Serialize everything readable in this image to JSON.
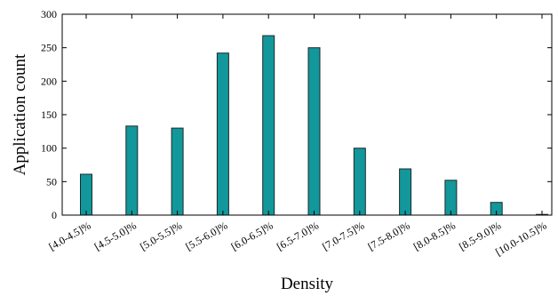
{
  "chart_data": {
    "type": "bar",
    "title": "",
    "xlabel": "Density",
    "ylabel": "Application count",
    "categories": [
      "[4.0-4.5]%",
      "[4.5-5.0]%",
      "[5.0-5.5]%",
      "[5.5-6.0]%",
      "[6.0-6.5]%",
      "[6.5-7.0]%",
      "[7.0-7.5]%",
      "[7.5-8.0]%",
      "[8.0-8.5]%",
      "[8.5-9.0]%",
      "[10.0-10.5]%"
    ],
    "values": [
      61,
      133,
      130,
      242,
      268,
      250,
      100,
      69,
      52,
      19,
      1
    ],
    "ylim": [
      0,
      300
    ],
    "yticks": [
      0,
      50,
      100,
      150,
      200,
      250,
      300
    ],
    "grid": false,
    "bar_color": "#12979b"
  }
}
